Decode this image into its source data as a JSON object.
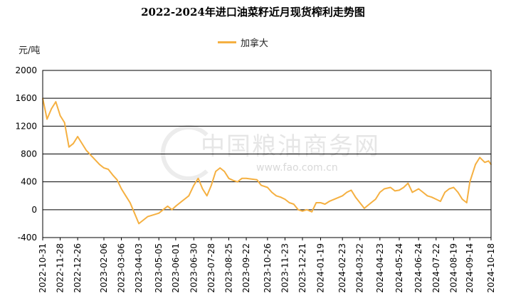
{
  "chart_data": {
    "type": "line",
    "title": "2022-2024年进口油菜籽近月现货榨利走势图",
    "ylabel": "元/吨",
    "ylim": [
      -400,
      2000
    ],
    "yticks": [
      -400,
      0,
      400,
      800,
      1200,
      1600,
      2000
    ],
    "grid": true,
    "legend_position": "top-center",
    "xticks": [
      "2022-10-31",
      "2022-11-28",
      "2022-12-26",
      "2023-02-06",
      "2023-03-06",
      "2023-04-03",
      "2023-05-05",
      "2023-06-01",
      "2023-06-30",
      "2023-07-28",
      "2023-08-25",
      "2023-09-22",
      "2023-10-26",
      "2023-11-23",
      "2023-12-21",
      "2024-01-19",
      "2024-02-23",
      "2024-03-22",
      "2024-04-23",
      "2024-05-24",
      "2024-06-24",
      "2024-07-22",
      "2024-08-19",
      "2024-09-14",
      "2024-10-18"
    ],
    "series": [
      {
        "name": "加拿大",
        "color": "#F5B041",
        "x": [
          "2022-10-31",
          "2022-11-07",
          "2022-11-14",
          "2022-11-21",
          "2022-11-28",
          "2022-12-05",
          "2022-12-12",
          "2022-12-19",
          "2022-12-26",
          "2023-01-09",
          "2023-01-30",
          "2023-02-06",
          "2023-02-13",
          "2023-02-20",
          "2023-02-27",
          "2023-03-06",
          "2023-03-13",
          "2023-03-20",
          "2023-03-27",
          "2023-04-03",
          "2023-04-10",
          "2023-04-17",
          "2023-04-24",
          "2023-05-05",
          "2023-05-12",
          "2023-05-19",
          "2023-05-26",
          "2023-06-01",
          "2023-06-08",
          "2023-06-15",
          "2023-06-22",
          "2023-06-30",
          "2023-07-07",
          "2023-07-14",
          "2023-07-21",
          "2023-07-28",
          "2023-08-04",
          "2023-08-11",
          "2023-08-18",
          "2023-08-25",
          "2023-09-01",
          "2023-09-08",
          "2023-09-15",
          "2023-09-22",
          "2023-10-09",
          "2023-10-16",
          "2023-10-26",
          "2023-11-02",
          "2023-11-09",
          "2023-11-16",
          "2023-11-23",
          "2023-11-30",
          "2023-12-07",
          "2023-12-14",
          "2023-12-21",
          "2023-12-28",
          "2024-01-05",
          "2024-01-12",
          "2024-01-19",
          "2024-01-26",
          "2024-02-02",
          "2024-02-23",
          "2024-03-01",
          "2024-03-08",
          "2024-03-15",
          "2024-03-22",
          "2024-03-29",
          "2024-04-09",
          "2024-04-16",
          "2024-04-23",
          "2024-04-30",
          "2024-05-10",
          "2024-05-17",
          "2024-05-24",
          "2024-05-31",
          "2024-06-07",
          "2024-06-14",
          "2024-06-24",
          "2024-07-01",
          "2024-07-08",
          "2024-07-15",
          "2024-07-22",
          "2024-07-29",
          "2024-08-05",
          "2024-08-12",
          "2024-08-19",
          "2024-08-26",
          "2024-09-02",
          "2024-09-09",
          "2024-09-14",
          "2024-09-23",
          "2024-09-30",
          "2024-10-08",
          "2024-10-14",
          "2024-10-18"
        ],
        "values": [
          1600,
          1300,
          1450,
          1550,
          1350,
          1250,
          900,
          950,
          1050,
          850,
          650,
          600,
          580,
          500,
          430,
          300,
          200,
          100,
          -50,
          -200,
          -150,
          -100,
          -80,
          -50,
          0,
          50,
          0,
          50,
          100,
          150,
          200,
          350,
          450,
          300,
          200,
          350,
          550,
          600,
          550,
          450,
          420,
          400,
          450,
          450,
          430,
          350,
          320,
          250,
          200,
          180,
          150,
          100,
          80,
          0,
          -20,
          0,
          -30,
          100,
          100,
          80,
          120,
          200,
          250,
          280,
          180,
          100,
          20,
          100,
          150,
          250,
          300,
          320,
          270,
          280,
          320,
          380,
          250,
          300,
          250,
          200,
          180,
          150,
          120,
          250,
          300,
          320,
          250,
          150,
          100,
          400,
          650,
          750,
          680,
          700,
          650
        ]
      }
    ]
  },
  "watermark": {
    "text": "中国粮油商务网",
    "url": "www.fao.com.cn"
  }
}
